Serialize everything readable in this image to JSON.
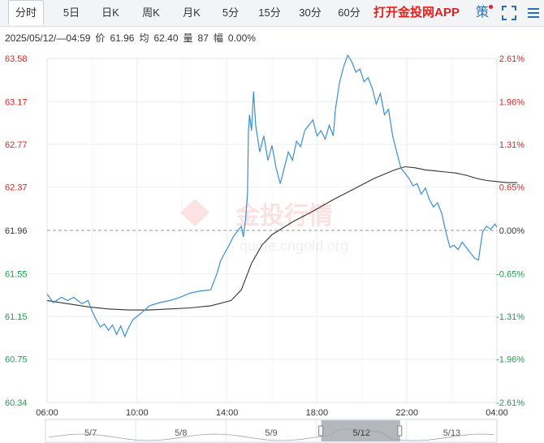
{
  "tabs": [
    {
      "label": "分时",
      "active": true
    },
    {
      "label": "5日"
    },
    {
      "label": "日K"
    },
    {
      "label": "周K"
    },
    {
      "label": "月K"
    },
    {
      "label": "5分"
    },
    {
      "label": "15分"
    },
    {
      "label": "30分"
    },
    {
      "label": "60分"
    }
  ],
  "promo_label": "打开金投网APP",
  "policy_label": "策",
  "info": {
    "datetime": "2025/05/12/—04:59",
    "price_label": "价",
    "price": "61.96",
    "avg_label": "均",
    "avg": "62.40",
    "volume_label": "量",
    "volume": "87",
    "change_label": "幅",
    "change": "0.00%"
  },
  "watermark": {
    "brand": "金投行情",
    "site": "quote.cngold.org"
  },
  "colors": {
    "up": "#e4201f",
    "down": "#16a34a",
    "price_line": "#3a8fd4",
    "avg_line": "#333333",
    "accent": "#2a6ebb"
  },
  "chart_data": {
    "type": "line",
    "x_ticks": [
      "06:00",
      "10:00",
      "14:00",
      "18:00",
      "22:00",
      "04:00"
    ],
    "ylim": [
      60.34,
      63.58
    ],
    "y_ticks": [
      "63.58",
      "63.17",
      "62.77",
      "62.37",
      "61.96",
      "61.55",
      "61.15",
      "60.75",
      "60.34"
    ],
    "y_tick_values": [
      63.58,
      63.17,
      62.77,
      62.37,
      61.96,
      61.55,
      61.15,
      60.75,
      60.34
    ],
    "pct_ticks": [
      "2.61%",
      "1.96%",
      "1.31%",
      "0.65%",
      "0.00%",
      "-0.65%",
      "-1.31%",
      "-1.96%",
      "-2.61%"
    ],
    "reference_price": 61.96,
    "x_range_hours": [
      0,
      23
    ],
    "series": [
      {
        "values": [
          [
            0.0,
            61.36
          ],
          [
            0.3,
            61.28
          ],
          [
            0.7,
            61.33
          ],
          [
            1.0,
            61.3
          ],
          [
            1.3,
            61.33
          ],
          [
            1.7,
            61.27
          ],
          [
            2.0,
            61.3
          ],
          [
            2.2,
            61.2
          ],
          [
            2.4,
            61.12
          ],
          [
            2.6,
            61.05
          ],
          [
            2.8,
            61.08
          ],
          [
            3.0,
            61.02
          ],
          [
            3.2,
            61.07
          ],
          [
            3.4,
            60.98
          ],
          [
            3.6,
            61.06
          ],
          [
            3.8,
            60.96
          ],
          [
            4.0,
            61.05
          ],
          [
            4.2,
            61.12
          ],
          [
            4.4,
            61.15
          ],
          [
            4.6,
            61.18
          ],
          [
            5.0,
            61.25
          ],
          [
            5.5,
            61.28
          ],
          [
            6.0,
            61.3
          ],
          [
            6.5,
            61.33
          ],
          [
            7.0,
            61.37
          ],
          [
            7.5,
            61.39
          ],
          [
            8.0,
            61.4
          ],
          [
            8.3,
            61.55
          ],
          [
            8.5,
            61.68
          ],
          [
            8.7,
            61.75
          ],
          [
            8.9,
            61.82
          ],
          [
            9.1,
            61.9
          ],
          [
            9.3,
            61.95
          ],
          [
            9.5,
            62.0
          ],
          [
            9.6,
            61.9
          ],
          [
            9.7,
            62.05
          ],
          [
            9.8,
            62.3
          ],
          [
            9.85,
            62.9
          ],
          [
            9.9,
            63.05
          ],
          [
            10.0,
            62.9
          ],
          [
            10.1,
            63.27
          ],
          [
            10.2,
            62.95
          ],
          [
            10.4,
            62.7
          ],
          [
            10.6,
            62.85
          ],
          [
            10.8,
            62.62
          ],
          [
            11.0,
            62.76
          ],
          [
            11.2,
            62.55
          ],
          [
            11.4,
            62.4
          ],
          [
            11.6,
            62.55
          ],
          [
            11.8,
            62.7
          ],
          [
            12.0,
            62.62
          ],
          [
            12.2,
            62.8
          ],
          [
            12.4,
            62.75
          ],
          [
            12.6,
            62.9
          ],
          [
            12.8,
            62.95
          ],
          [
            13.0,
            63.0
          ],
          [
            13.2,
            62.85
          ],
          [
            13.4,
            62.9
          ],
          [
            13.6,
            62.82
          ],
          [
            13.8,
            62.95
          ],
          [
            14.0,
            62.85
          ],
          [
            14.1,
            63.1
          ],
          [
            14.3,
            63.35
          ],
          [
            14.5,
            63.5
          ],
          [
            14.7,
            63.61
          ],
          [
            14.9,
            63.55
          ],
          [
            15.1,
            63.45
          ],
          [
            15.3,
            63.48
          ],
          [
            15.5,
            63.36
          ],
          [
            15.7,
            63.4
          ],
          [
            15.9,
            63.3
          ],
          [
            16.1,
            63.15
          ],
          [
            16.3,
            63.25
          ],
          [
            16.5,
            63.05
          ],
          [
            16.7,
            63.1
          ],
          [
            16.9,
            62.85
          ],
          [
            17.1,
            62.7
          ],
          [
            17.3,
            62.55
          ],
          [
            17.5,
            62.5
          ],
          [
            17.7,
            62.45
          ],
          [
            17.9,
            62.38
          ],
          [
            18.1,
            62.4
          ],
          [
            18.3,
            62.3
          ],
          [
            18.5,
            62.36
          ],
          [
            18.7,
            62.25
          ],
          [
            18.9,
            62.18
          ],
          [
            19.1,
            62.22
          ],
          [
            19.3,
            62.12
          ],
          [
            19.5,
            61.95
          ],
          [
            19.7,
            61.8
          ],
          [
            19.9,
            61.82
          ],
          [
            20.1,
            61.78
          ],
          [
            20.3,
            61.85
          ],
          [
            20.5,
            61.8
          ],
          [
            20.7,
            61.75
          ],
          [
            20.9,
            61.7
          ],
          [
            21.1,
            61.68
          ],
          [
            21.3,
            61.95
          ],
          [
            21.5,
            62.0
          ],
          [
            21.7,
            61.97
          ],
          [
            21.9,
            62.02
          ],
          [
            22.0,
            61.99
          ]
        ]
      },
      {
        "values": [
          [
            0.0,
            61.3
          ],
          [
            1.0,
            61.27
          ],
          [
            2.0,
            61.24
          ],
          [
            3.0,
            61.22
          ],
          [
            4.0,
            61.21
          ],
          [
            5.0,
            61.21
          ],
          [
            6.0,
            61.22
          ],
          [
            7.0,
            61.23
          ],
          [
            8.0,
            61.25
          ],
          [
            9.0,
            61.3
          ],
          [
            9.5,
            61.4
          ],
          [
            10.0,
            61.65
          ],
          [
            10.5,
            61.82
          ],
          [
            11.0,
            61.92
          ],
          [
            11.5,
            61.98
          ],
          [
            12.0,
            62.04
          ],
          [
            13.0,
            62.14
          ],
          [
            14.0,
            62.25
          ],
          [
            15.0,
            62.35
          ],
          [
            16.0,
            62.45
          ],
          [
            17.0,
            62.53
          ],
          [
            17.5,
            62.56
          ],
          [
            18.0,
            62.55
          ],
          [
            18.5,
            62.53
          ],
          [
            19.0,
            62.52
          ],
          [
            19.5,
            62.51
          ],
          [
            20.0,
            62.5
          ],
          [
            20.5,
            62.48
          ],
          [
            21.0,
            62.45
          ],
          [
            21.5,
            62.43
          ],
          [
            22.0,
            62.42
          ],
          [
            22.5,
            62.41
          ],
          [
            23.0,
            62.41
          ]
        ]
      }
    ],
    "navigator_labels": [
      "5/7",
      "5/8",
      "5/9",
      "5/12",
      "5/13"
    ],
    "navigator_selected": "5/12"
  }
}
